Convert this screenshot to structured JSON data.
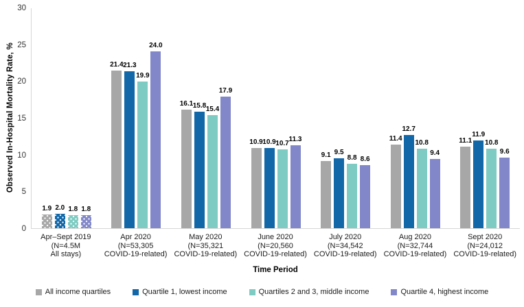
{
  "chart_data": {
    "type": "bar",
    "title": "",
    "ylabel": "Observed In-Hospital Mortality Rate, %",
    "xlabel": "Time Period",
    "ylim": [
      0,
      30
    ],
    "yticks": [
      0,
      5,
      10,
      15,
      20,
      25,
      30
    ],
    "grid": false,
    "legend_position": "bottom",
    "axis_line_color": "#d6d6d6",
    "categories": [
      {
        "label_lines": [
          "Apr–Sept 2019",
          "(N=4.5M",
          "All stays)"
        ],
        "patterned": true
      },
      {
        "label_lines": [
          "Apr 2020",
          "(N=53,305",
          "COVID-19-related)"
        ],
        "patterned": false
      },
      {
        "label_lines": [
          "May 2020",
          "(N=35,321",
          "COVID-19-related)"
        ],
        "patterned": false
      },
      {
        "label_lines": [
          "June 2020",
          "(N=20,560",
          "COVID-19-related)"
        ],
        "patterned": false
      },
      {
        "label_lines": [
          "July 2020",
          "(N=34,542",
          "COVID-19-related)"
        ],
        "patterned": false
      },
      {
        "label_lines": [
          "Aug 2020",
          "(N=32,744",
          "COVID-19-related)"
        ],
        "patterned": false
      },
      {
        "label_lines": [
          "Sept 2020",
          "(N=24,012",
          "COVID-19-related)"
        ],
        "patterned": false
      }
    ],
    "series": [
      {
        "name": "All income quartiles",
        "color": "#A7A7A7",
        "values": [
          1.9,
          21.4,
          16.1,
          10.9,
          9.1,
          11.4,
          11.1
        ]
      },
      {
        "name": "Quartile 1, lowest income",
        "color": "#1167A8",
        "values": [
          2.0,
          21.3,
          15.8,
          10.9,
          9.5,
          12.7,
          11.9
        ]
      },
      {
        "name": "Quartiles 2 and 3, middle income",
        "color": "#7DCBC2",
        "values": [
          1.8,
          19.9,
          15.4,
          10.7,
          8.8,
          10.8,
          10.8
        ]
      },
      {
        "name": "Quartile 4, highest income",
        "color": "#8187C8",
        "values": [
          1.8,
          24.0,
          17.9,
          11.3,
          8.6,
          9.4,
          9.6
        ]
      }
    ]
  }
}
